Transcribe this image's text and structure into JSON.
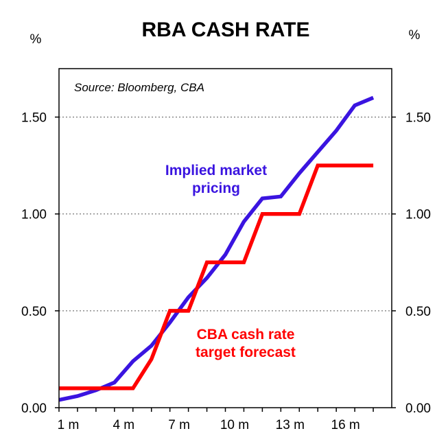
{
  "chart_data": {
    "type": "line",
    "title": "RBA CASH RATE",
    "source": "Source: Bloomberg, CBA",
    "left_unit": "%",
    "right_unit": "%",
    "x_tick_labels": [
      "1 m",
      "4 m",
      "7 m",
      "10 m",
      "13 m",
      "16 m"
    ],
    "x_ticks": [
      1,
      4,
      7,
      10,
      13,
      16
    ],
    "xlim": [
      0.5,
      18.5
    ],
    "ylim": [
      0,
      1.75
    ],
    "y_ticks": [
      0.0,
      0.5,
      1.0,
      1.5
    ],
    "y_tick_labels": [
      "0.00",
      "0.50",
      "1.00",
      "1.50"
    ],
    "grid": "horizontal dotted",
    "series": [
      {
        "name_lines": [
          "Implied market",
          "pricing"
        ],
        "color": "#3a14e0",
        "points": [
          [
            0.5,
            0.04
          ],
          [
            1.5,
            0.06
          ],
          [
            2.5,
            0.09
          ],
          [
            3.5,
            0.13
          ],
          [
            4.5,
            0.24
          ],
          [
            5.5,
            0.32
          ],
          [
            6.5,
            0.44
          ],
          [
            7.5,
            0.57
          ],
          [
            8.5,
            0.67
          ],
          [
            9.5,
            0.79
          ],
          [
            10.5,
            0.96
          ],
          [
            11.5,
            1.08
          ],
          [
            12.5,
            1.09
          ],
          [
            13.5,
            1.21
          ],
          [
            14.5,
            1.32
          ],
          [
            15.5,
            1.43
          ],
          [
            16.5,
            1.56
          ],
          [
            17.5,
            1.6
          ]
        ]
      },
      {
        "name_lines": [
          "CBA cash rate",
          "target forecast"
        ],
        "color": "#ff0000",
        "points": [
          [
            0.5,
            0.1
          ],
          [
            4.5,
            0.1
          ],
          [
            5.5,
            0.25
          ],
          [
            6.5,
            0.5
          ],
          [
            7.5,
            0.5
          ],
          [
            8.5,
            0.75
          ],
          [
            10.5,
            0.75
          ],
          [
            11.5,
            1.0
          ],
          [
            13.5,
            1.0
          ],
          [
            14.5,
            1.25
          ],
          [
            17.5,
            1.25
          ]
        ]
      }
    ]
  }
}
